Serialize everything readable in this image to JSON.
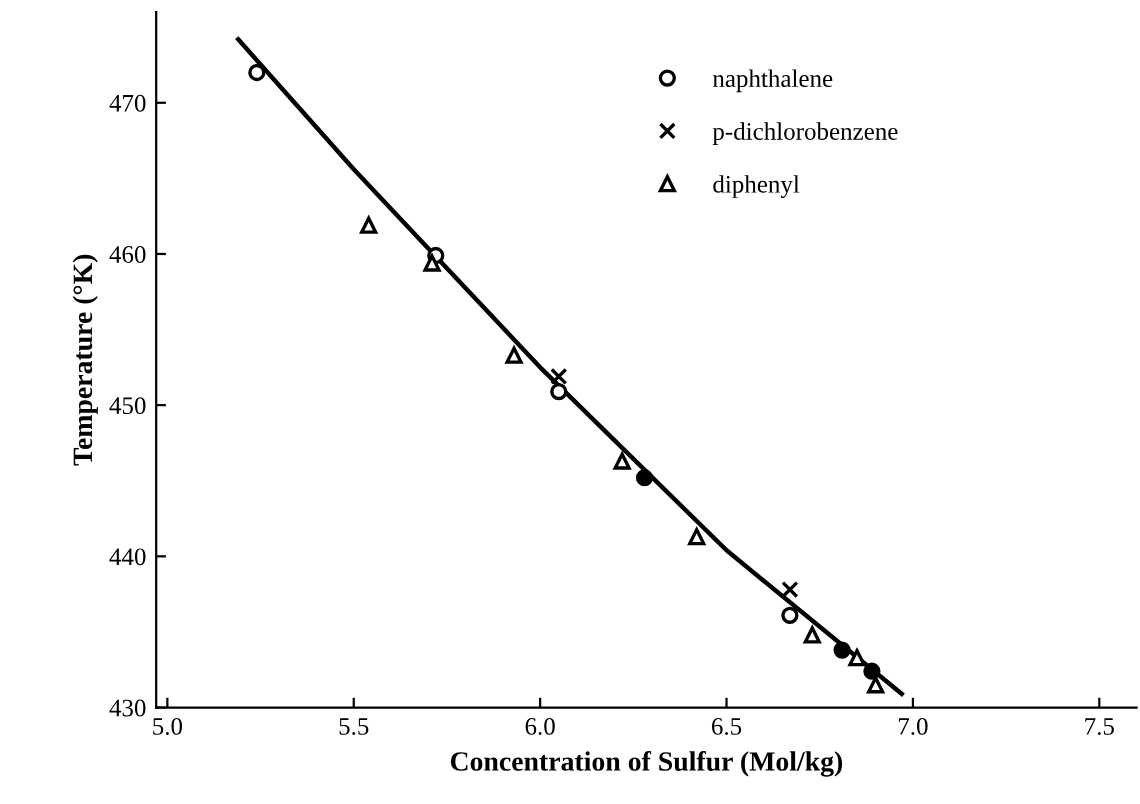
{
  "chart_data": {
    "type": "scatter",
    "xlabel": "Concentration of Sulfur (Mol/kg)",
    "ylabel": "Temperature (°K)",
    "xlim": [
      4.97,
      7.6
    ],
    "ylim": [
      430,
      476
    ],
    "xticks": [
      {
        "value": 5.0,
        "label": "5.0"
      },
      5.5,
      {
        "value": 6.0,
        "label": "6.0"
      },
      6.5,
      {
        "value": 7.0,
        "label": "7.0"
      },
      7.5
    ],
    "yticks": [
      430,
      440,
      450,
      460,
      470
    ],
    "grid": false,
    "legend": "top right",
    "series": [
      {
        "type": "line",
        "color": "#000000",
        "marker": "none",
        "line_style": "solid",
        "x": [
          5.19,
          5.5,
          6.0,
          6.5,
          6.97
        ],
        "values": [
          474.2,
          465.6,
          452.5,
          440.4,
          430.9
        ]
      },
      {
        "name": "naphthalene",
        "color": "#000000",
        "marker": "circle",
        "x": [
          5.24,
          5.72,
          6.05,
          6.67
        ],
        "values": [
          472.0,
          459.9,
          450.9,
          436.1
        ]
      },
      {
        "name": "p-dichlorobenzene",
        "color": "#000000",
        "marker": "cross",
        "x": [
          6.05,
          6.67
        ],
        "values": [
          451.9,
          437.8
        ]
      },
      {
        "name": "diphenyl",
        "color": "#000000",
        "marker": "triangle",
        "x": [
          5.54,
          5.71,
          5.93,
          6.22,
          6.42,
          6.73,
          6.85,
          6.9
        ],
        "values": [
          461.9,
          459.4,
          453.3,
          446.3,
          441.3,
          434.8,
          433.3,
          431.5
        ]
      },
      {
        "color": "#000000",
        "marker": "filled circle",
        "x": [
          6.28,
          6.81,
          6.89
        ],
        "values": [
          445.2,
          433.8,
          432.4
        ]
      }
    ]
  }
}
